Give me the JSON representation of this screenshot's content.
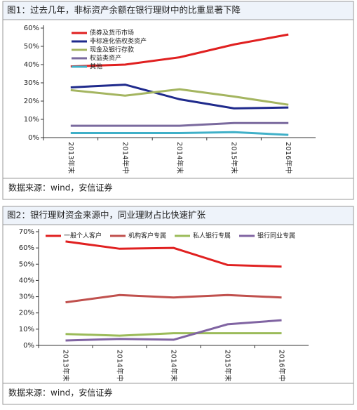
{
  "chart_data": [
    {
      "type": "line",
      "title": "图1：过去几年，非标资产余额在银行理财中的比重显著下降",
      "source": "数据来源：wind，安信证券",
      "categories": [
        "2013年末",
        "2014年中",
        "2014年末",
        "2015年末",
        "2016年中"
      ],
      "legend": "upper left",
      "series": [
        {
          "name": "债券及货币市场",
          "color": "#e02020",
          "values": [
            39,
            40,
            44,
            51,
            56.5
          ]
        },
        {
          "name": "非标准化债权类资产",
          "color": "#1f2a8c",
          "values": [
            27.5,
            29,
            21,
            16,
            16.5
          ]
        },
        {
          "name": "现金及银行存款",
          "color": "#a4b560",
          "values": [
            26,
            23,
            26.5,
            22.5,
            18
          ]
        },
        {
          "name": "权益类资产",
          "color": "#7a6a9e",
          "values": [
            6.5,
            6.5,
            6.5,
            8,
            8
          ]
        },
        {
          "name": "其他",
          "color": "#3fb0c8",
          "values": [
            2.5,
            2.5,
            2.5,
            3,
            1.5
          ]
        }
      ],
      "ylim": [
        0,
        60
      ],
      "yticks": [
        {
          "value": 0,
          "label": "0%"
        },
        {
          "value": 10,
          "label": "10%"
        },
        {
          "value": 20,
          "label": "20%"
        },
        {
          "value": 30,
          "label": "30%"
        },
        {
          "value": 40,
          "label": "40%"
        },
        {
          "value": 50,
          "label": "50%"
        },
        {
          "value": 60,
          "label": "60%"
        }
      ]
    },
    {
      "type": "line",
      "title": "图2：银行理财资金来源中，同业理财占比快速扩张",
      "source": "数据来源：wind，安信证券",
      "categories": [
        "2013年末",
        "2014年中",
        "2014年末",
        "2015年末",
        "2016年中"
      ],
      "legend": "top",
      "series": [
        {
          "name": "一般个人客户",
          "color": "#e02020",
          "values": [
            64,
            59.5,
            60,
            49.5,
            48.5
          ]
        },
        {
          "name": "机构客户专属",
          "color": "#c0504d",
          "values": [
            26.5,
            31,
            29.5,
            31,
            29.5
          ]
        },
        {
          "name": "私人银行专属",
          "color": "#9bbb59",
          "values": [
            7,
            6,
            7.5,
            7.5,
            7.5
          ]
        },
        {
          "name": "银行同业专属",
          "color": "#8064a2",
          "values": [
            3,
            4,
            3.5,
            13,
            15.5
          ]
        }
      ],
      "ylim": [
        0,
        70
      ],
      "yticks": [
        {
          "value": 0,
          "label": "0%"
        },
        {
          "value": 10,
          "label": "10%"
        },
        {
          "value": 20,
          "label": "20%"
        },
        {
          "value": 30,
          "label": "30%"
        },
        {
          "value": 40,
          "label": "40%"
        },
        {
          "value": 50,
          "label": "50%"
        },
        {
          "value": 60,
          "label": "60%"
        },
        {
          "value": 70,
          "label": "70%"
        }
      ]
    }
  ]
}
